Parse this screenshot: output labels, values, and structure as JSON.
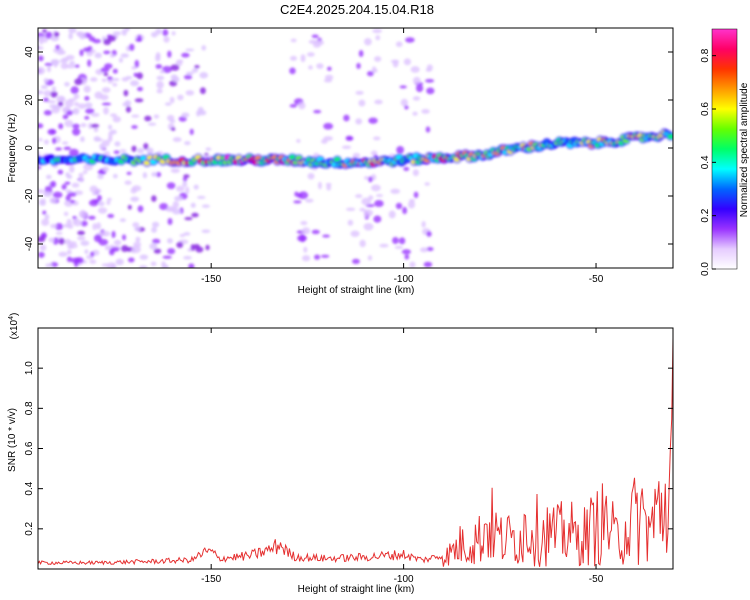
{
  "title": "C2E4.2025.204.15.04.R18",
  "chart_data": [
    {
      "type": "heatmap",
      "xlabel": "Height of straight line (km)",
      "ylabel": "Frequency (Hz)",
      "xlim": [
        -195,
        -30
      ],
      "ylim": [
        -50,
        50
      ],
      "xticks": [
        -150,
        -100,
        -50
      ],
      "yticks": [
        40,
        20,
        0,
        -20,
        -40
      ],
      "colorbar": {
        "label": "Normalized spectral amplitude",
        "range": [
          0,
          0.9
        ],
        "ticks": [
          0.0,
          0.2,
          0.4,
          0.6,
          0.8
        ],
        "colors": [
          "#ffffff",
          "#e6ccff",
          "#9933ff",
          "#3300ff",
          "#0066ff",
          "#00ffff",
          "#00ff66",
          "#66ff00",
          "#ffff00",
          "#ff9900",
          "#ff3300",
          "#ff0066",
          "#ff33cc"
        ]
      },
      "ridge": [
        {
          "x": -195,
          "y": -5,
          "amp": 0.35
        },
        {
          "x": -180,
          "y": -5,
          "amp": 0.4
        },
        {
          "x": -165,
          "y": -5,
          "amp": 0.55
        },
        {
          "x": -150,
          "y": -5,
          "amp": 0.7
        },
        {
          "x": -140,
          "y": -5,
          "amp": 0.75
        },
        {
          "x": -130,
          "y": -5,
          "amp": 0.6
        },
        {
          "x": -120,
          "y": -6,
          "amp": 0.45
        },
        {
          "x": -110,
          "y": -6,
          "amp": 0.65
        },
        {
          "x": -100,
          "y": -5,
          "amp": 0.45
        },
        {
          "x": -90,
          "y": -4,
          "amp": 0.65
        },
        {
          "x": -80,
          "y": -3,
          "amp": 0.55
        },
        {
          "x": -70,
          "y": 0,
          "amp": 0.6
        },
        {
          "x": -60,
          "y": 2,
          "amp": 0.45
        },
        {
          "x": -50,
          "y": 2,
          "amp": 0.55
        },
        {
          "x": -40,
          "y": 4,
          "amp": 0.6
        },
        {
          "x": -30,
          "y": 6,
          "amp": 0.5
        }
      ],
      "noise_bands_x": [
        -193,
        -185,
        -178,
        -160,
        -124,
        -110,
        -98
      ]
    },
    {
      "type": "line",
      "xlabel": "Height of straight line (km)",
      "ylabel": "SNR (10 * v/v)",
      "y_multiplier": "(x10",
      "y_multiplier_exp": "4",
      "y_multiplier_close": ")",
      "xlim": [
        -195,
        -30
      ],
      "ylim": [
        0,
        1.2
      ],
      "xticks": [
        -150,
        -100,
        -50
      ],
      "yticks": [
        0.2,
        0.4,
        0.6,
        0.8,
        1.0
      ],
      "series": [
        {
          "color": "#e53030",
          "x": [
            -195,
            -180,
            -165,
            -155,
            -152,
            -150,
            -148,
            -140,
            -135,
            -132,
            -130,
            -128,
            -120,
            -110,
            -100,
            -98,
            -95,
            -90,
            -85,
            -80,
            -78,
            -77,
            -75,
            -70,
            -68,
            -65,
            -60,
            -57,
            -55,
            -52,
            -50,
            -47,
            -45,
            -42,
            -40,
            -38,
            -36,
            -34,
            -32,
            -31,
            -30
          ],
          "y": [
            0.03,
            0.03,
            0.04,
            0.05,
            0.1,
            0.11,
            0.06,
            0.08,
            0.12,
            0.16,
            0.1,
            0.07,
            0.06,
            0.07,
            0.09,
            0.07,
            0.05,
            0.08,
            0.25,
            0.32,
            0.5,
            0.45,
            0.3,
            0.32,
            0.45,
            0.4,
            0.35,
            0.4,
            0.3,
            0.38,
            0.45,
            0.5,
            0.3,
            0.45,
            0.52,
            0.55,
            0.4,
            0.6,
            0.7,
            0.9,
            1.15
          ]
        }
      ]
    }
  ]
}
